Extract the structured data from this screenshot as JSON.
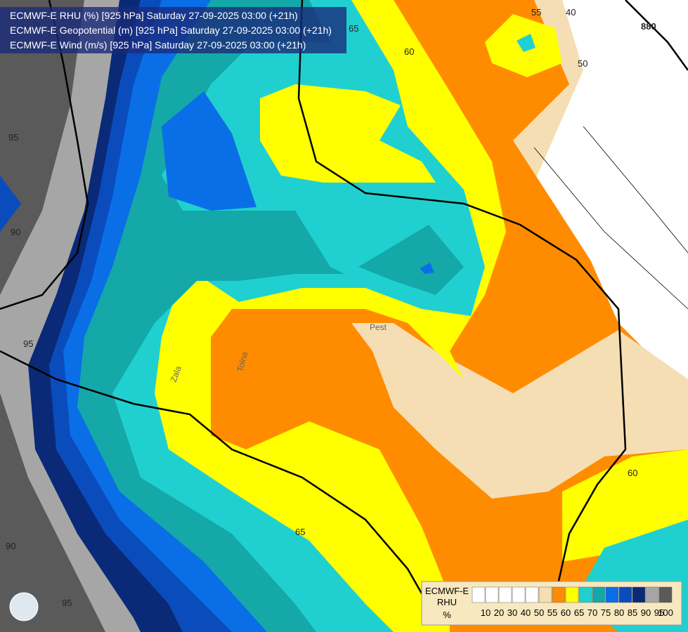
{
  "header": {
    "lines": [
      "ECMWF-E RHU (%) [925 hPa] Saturday 27-09-2025 03:00 (+21h)",
      "ECMWF-E Geopotential (m) [925 hPa] Saturday 27-09-2025 03:00 (+21h)",
      "ECMWF-E Wind (m/s) [925 hPa] Saturday 27-09-2025 03:00 (+21h)"
    ]
  },
  "contour_labels": [
    "95",
    "90",
    "95",
    "90",
    "95",
    "65",
    "60",
    "55",
    "40",
    "50",
    "60",
    "65",
    "880"
  ],
  "places": [
    "Pest",
    "Zala",
    "Tolna"
  ],
  "legend": {
    "title": [
      "ECMWF-E",
      "RHU",
      "%"
    ],
    "ticks": [
      10,
      20,
      30,
      40,
      50,
      55,
      60,
      65,
      70,
      75,
      80,
      85,
      90,
      95,
      100
    ],
    "colors": [
      "#ffffff",
      "#ffffff",
      "#ffffff",
      "#ffffff",
      "#ffffff",
      "#f5deb3",
      "#ff8c00",
      "#ffff00",
      "#20d0d0",
      "#14a8a8",
      "#0a6ee6",
      "#0a4cbc",
      "#0a2a78",
      "#a6a6a6",
      "#5a5a5a"
    ]
  }
}
